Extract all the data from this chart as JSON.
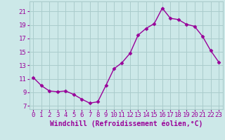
{
  "x": [
    0,
    1,
    2,
    3,
    4,
    5,
    6,
    7,
    8,
    9,
    10,
    11,
    12,
    13,
    14,
    15,
    16,
    17,
    18,
    19,
    20,
    21,
    22,
    23
  ],
  "y": [
    11.2,
    10.0,
    9.2,
    9.1,
    9.2,
    8.7,
    8.0,
    7.4,
    7.6,
    10.0,
    12.5,
    13.4,
    14.8,
    17.5,
    18.5,
    19.2,
    21.5,
    20.0,
    19.8,
    19.1,
    18.8,
    17.3,
    15.2,
    13.5
  ],
  "line_color": "#990099",
  "marker": "D",
  "markersize": 2.5,
  "linewidth": 1.0,
  "bg_color": "#cce8e8",
  "grid_color": "#aacccc",
  "xlabel": "Windchill (Refroidissement éolien,°C)",
  "xlabel_fontsize": 7,
  "ylabel_ticks": [
    7,
    9,
    11,
    13,
    15,
    17,
    19,
    21
  ],
  "xtick_labels": [
    "0",
    "1",
    "2",
    "3",
    "4",
    "5",
    "6",
    "7",
    "8",
    "9",
    "10",
    "11",
    "12",
    "13",
    "14",
    "15",
    "16",
    "17",
    "18",
    "19",
    "20",
    "21",
    "22",
    "23"
  ],
  "ylim": [
    6.5,
    22.5
  ],
  "xlim": [
    -0.5,
    23.5
  ],
  "tick_color": "#990099",
  "tick_fontsize": 6.5
}
